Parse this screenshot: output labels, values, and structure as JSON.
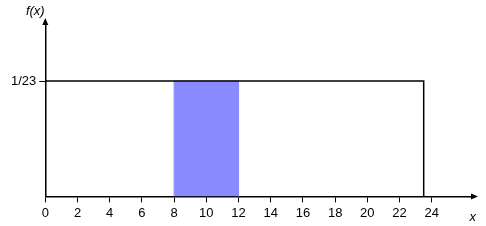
{
  "chart_data": {
    "type": "line",
    "xlabel": "x",
    "ylabel": "f(x)",
    "series": [
      {
        "type": "line",
        "color": "#000000",
        "x": [
          0,
          0,
          23.5,
          23.5
        ],
        "values": [
          0,
          0.0435,
          0.0435,
          0
        ]
      },
      {
        "type": "area",
        "color": "#8a8aff",
        "x": [
          8,
          8,
          12,
          12
        ],
        "values": [
          0,
          0.0435,
          0.0435,
          0
        ]
      }
    ],
    "xlim": [
      0,
      26.5
    ],
    "xticks": [
      0,
      2,
      4,
      6,
      8,
      10,
      12,
      14,
      16,
      18,
      20,
      22,
      24
    ],
    "ylim": [
      0,
      0.065
    ],
    "yticks": [
      {
        "value": 0.0435,
        "label": "1/23"
      }
    ],
    "grid": false
  }
}
